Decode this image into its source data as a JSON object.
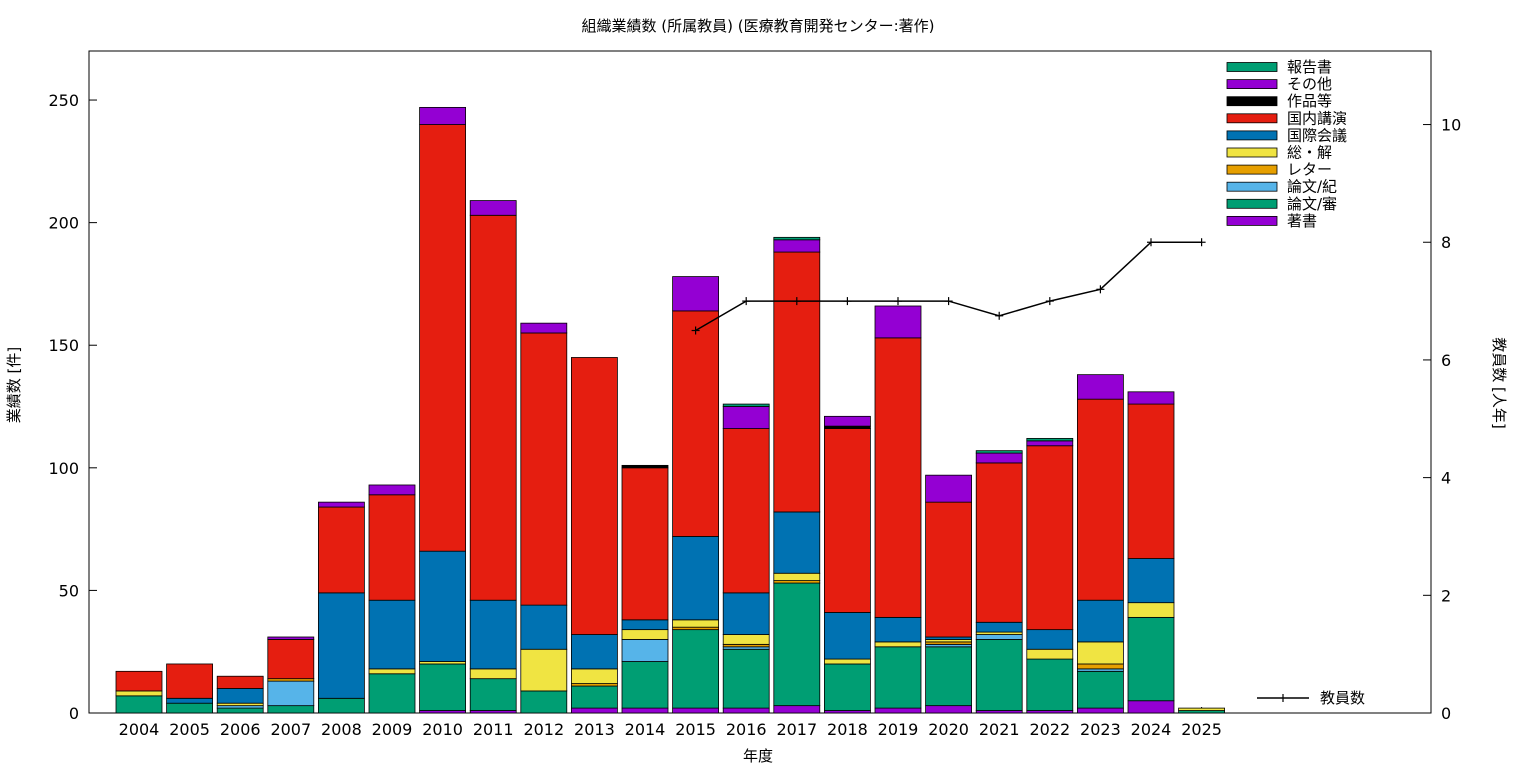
{
  "chart_data": {
    "type": "bar",
    "stacked": true,
    "title": "組織業績数 (所属教員) (医療教育開発センター:著作)",
    "xlabel": "年度",
    "ylabel": "業績数 [件]",
    "y2label": "教員数 [人年]",
    "ylim": [
      0,
      270
    ],
    "y2lim": [
      0,
      11.25
    ],
    "yticks": [
      0,
      50,
      100,
      150,
      200,
      250
    ],
    "y2ticks": [
      0,
      2,
      4,
      6,
      8,
      10
    ],
    "grid": false,
    "legend_position": "top-right",
    "categories": [
      "2004",
      "2005",
      "2006",
      "2007",
      "2008",
      "2009",
      "2010",
      "2011",
      "2012",
      "2013",
      "2014",
      "2015",
      "2016",
      "2017",
      "2018",
      "2019",
      "2020",
      "2021",
      "2022",
      "2023",
      "2024",
      "2025"
    ],
    "series": [
      {
        "name": "著書",
        "color": "#9400d3",
        "values": [
          0,
          0,
          0,
          0,
          0,
          0,
          1,
          1,
          0,
          2,
          2,
          2,
          2,
          3,
          1,
          2,
          3,
          1,
          1,
          2,
          5,
          0
        ]
      },
      {
        "name": "論文/審",
        "color": "#009e73",
        "values": [
          7,
          4,
          2,
          3,
          6,
          16,
          19,
          13,
          9,
          9,
          19,
          32,
          24,
          50,
          19,
          25,
          24,
          29,
          21,
          15,
          34,
          1
        ]
      },
      {
        "name": "論文/紀",
        "color": "#56b4e9",
        "values": [
          0,
          0,
          1,
          10,
          0,
          0,
          0,
          0,
          0,
          0,
          9,
          0,
          1,
          0,
          0,
          0,
          1,
          2,
          0,
          1,
          0,
          0
        ]
      },
      {
        "name": "レター",
        "color": "#e69f00",
        "values": [
          0,
          0,
          0,
          1,
          0,
          0,
          0,
          0,
          0,
          1,
          0,
          1,
          1,
          1,
          0,
          0,
          1,
          0,
          0,
          2,
          0,
          0
        ]
      },
      {
        "name": "総・解",
        "color": "#f0e442",
        "values": [
          2,
          0,
          1,
          0,
          0,
          2,
          1,
          4,
          17,
          6,
          4,
          3,
          4,
          3,
          2,
          2,
          1,
          1,
          4,
          9,
          6,
          1
        ]
      },
      {
        "name": "国際会議",
        "color": "#0072b2",
        "values": [
          0,
          2,
          6,
          0,
          43,
          28,
          45,
          28,
          18,
          14,
          4,
          34,
          17,
          25,
          19,
          10,
          1,
          4,
          8,
          17,
          18,
          0
        ]
      },
      {
        "name": "国内講演",
        "color": "#e51e10",
        "values": [
          8,
          14,
          5,
          16,
          35,
          43,
          174,
          157,
          111,
          113,
          62,
          92,
          67,
          106,
          75,
          114,
          55,
          65,
          75,
          82,
          63,
          0
        ]
      },
      {
        "name": "作品等",
        "color": "#000000",
        "values": [
          0,
          0,
          0,
          0,
          0,
          0,
          0,
          0,
          0,
          0,
          1,
          0,
          0,
          0,
          1,
          0,
          0,
          0,
          0,
          0,
          0,
          0
        ]
      },
      {
        "name": "その他",
        "color": "#9400d3",
        "values": [
          0,
          0,
          0,
          1,
          2,
          4,
          7,
          6,
          4,
          0,
          0,
          14,
          9,
          5,
          4,
          13,
          11,
          4,
          2,
          10,
          5,
          0
        ]
      },
      {
        "name": "報告書",
        "color": "#009e73",
        "values": [
          0,
          0,
          0,
          0,
          0,
          0,
          0,
          0,
          0,
          0,
          0,
          0,
          1,
          1,
          0,
          0,
          0,
          1,
          1,
          0,
          0,
          0
        ]
      }
    ],
    "line_series": {
      "name": "教員数",
      "axis": "y2",
      "color": "#000000",
      "x": [
        "2015",
        "2016",
        "2017",
        "2018",
        "2019",
        "2020",
        "2021",
        "2022",
        "2023",
        "2024",
        "2025"
      ],
      "values": [
        6.5,
        7,
        7,
        7,
        7,
        7,
        6.75,
        7,
        7.2,
        8,
        8
      ]
    }
  }
}
